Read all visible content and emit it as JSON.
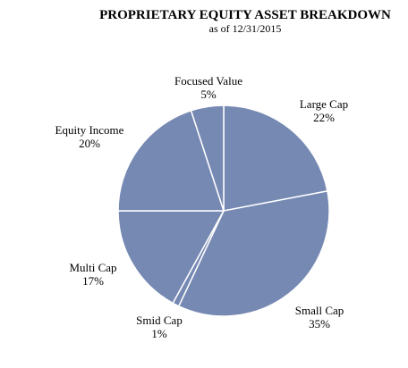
{
  "chart_data": {
    "type": "pie",
    "title": "PROPRIETARY EQUITY ASSET BREAKDOWN",
    "subtitle": "as of 12/31/2015",
    "slices": [
      {
        "label": "Large Cap",
        "value": 22,
        "value_text": "22%"
      },
      {
        "label": "Small Cap",
        "value": 35,
        "value_text": "35%"
      },
      {
        "label": "Smid Cap",
        "value": 1,
        "value_text": "1%"
      },
      {
        "label": "Multi Cap",
        "value": 17,
        "value_text": "17%"
      },
      {
        "label": "Equity Income",
        "value": 20,
        "value_text": "20%"
      },
      {
        "label": "Focused Value",
        "value": 5,
        "value_text": "5%"
      }
    ],
    "colors": {
      "slice_fill": "#7689b3",
      "slice_border": "#ffffff"
    },
    "start_angle": "12 o'clock",
    "direction": "clockwise",
    "legend": "none",
    "labels": "outside"
  }
}
